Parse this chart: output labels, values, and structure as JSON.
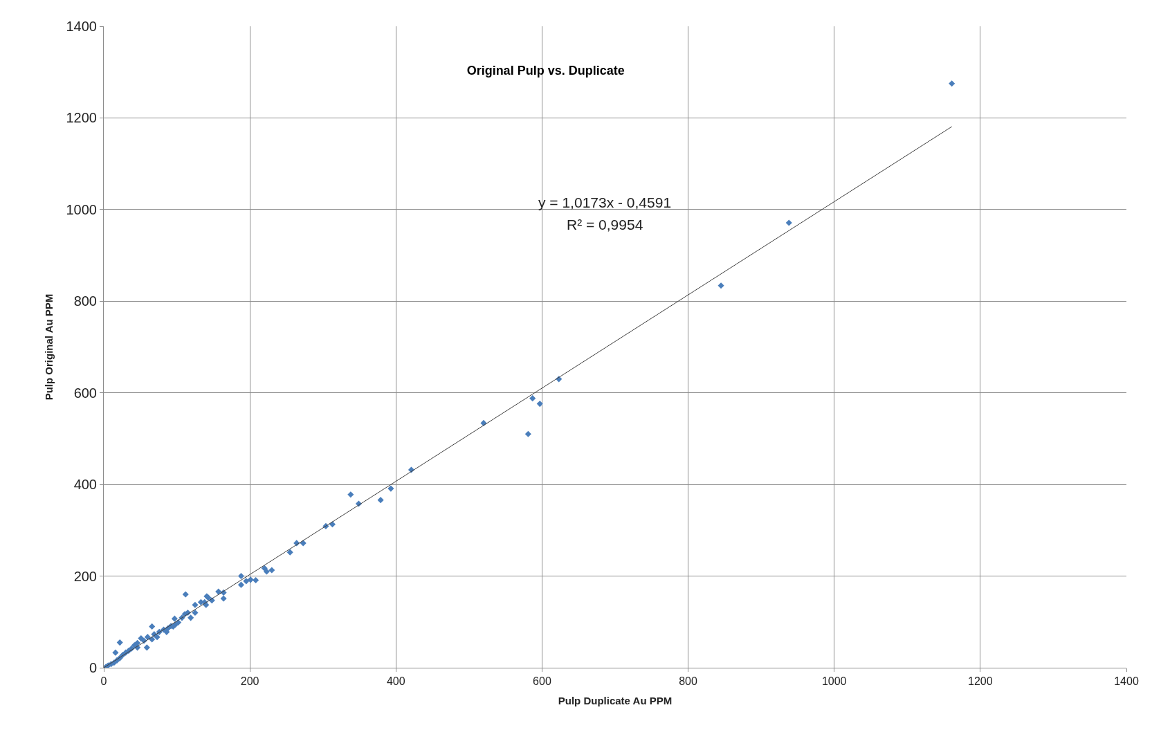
{
  "chart_data": {
    "type": "scatter",
    "title": "Original Pulp vs. Duplicate",
    "xlabel": "Pulp Duplicate Au PPM",
    "ylabel": "Pulp Original Au PPM",
    "xlim": [
      0,
      1400
    ],
    "xticks": [
      0,
      200,
      400,
      600,
      800,
      1000,
      1200,
      1400
    ],
    "ylim": [
      0,
      1400
    ],
    "yticks": [
      0,
      200,
      400,
      600,
      800,
      1000,
      1200,
      1400
    ],
    "grid": true,
    "marker": "diamond",
    "annotations": [
      "y = 1,0173x - 0,4591",
      "R² = 0,9954"
    ],
    "series": [
      {
        "color": "#4a7ebb",
        "x": [
          1161,
          938,
          845,
          623,
          597,
          587,
          581,
          520,
          421,
          393,
          379,
          349,
          338,
          313,
          304,
          273,
          264,
          255,
          230,
          223,
          220,
          208,
          201,
          195,
          188,
          188,
          164,
          164,
          157,
          148,
          141,
          143,
          140,
          138,
          133,
          125,
          125,
          119,
          112,
          115,
          111,
          107,
          102,
          98,
          97,
          92,
          88,
          82,
          76,
          69,
          66,
          66,
          60,
          59,
          55,
          51,
          46,
          42,
          38,
          34,
          30,
          26,
          22,
          18,
          14,
          10,
          6,
          3,
          22,
          16,
          46,
          73,
          86,
          95
        ],
        "values": [
          1275,
          971,
          834,
          630,
          576,
          588,
          510,
          534,
          432,
          391,
          366,
          358,
          378,
          313,
          309,
          272,
          272,
          252,
          213,
          210,
          217,
          191,
          192,
          189,
          181,
          200,
          164,
          151,
          166,
          147,
          156,
          153,
          137,
          143,
          143,
          137,
          120,
          109,
          160,
          120,
          117,
          109,
          99,
          94,
          107,
          91,
          86,
          83,
          78,
          73,
          90,
          62,
          67,
          44,
          59,
          64,
          54,
          49,
          42,
          37,
          33,
          28,
          21,
          16,
          11,
          8,
          5,
          2,
          55,
          33,
          44,
          67,
          78,
          90
        ]
      },
      {
        "type": "line",
        "color": "#404040",
        "marker": "none",
        "x": [
          0,
          1161
        ],
        "values": [
          0,
          1181
        ]
      }
    ]
  }
}
